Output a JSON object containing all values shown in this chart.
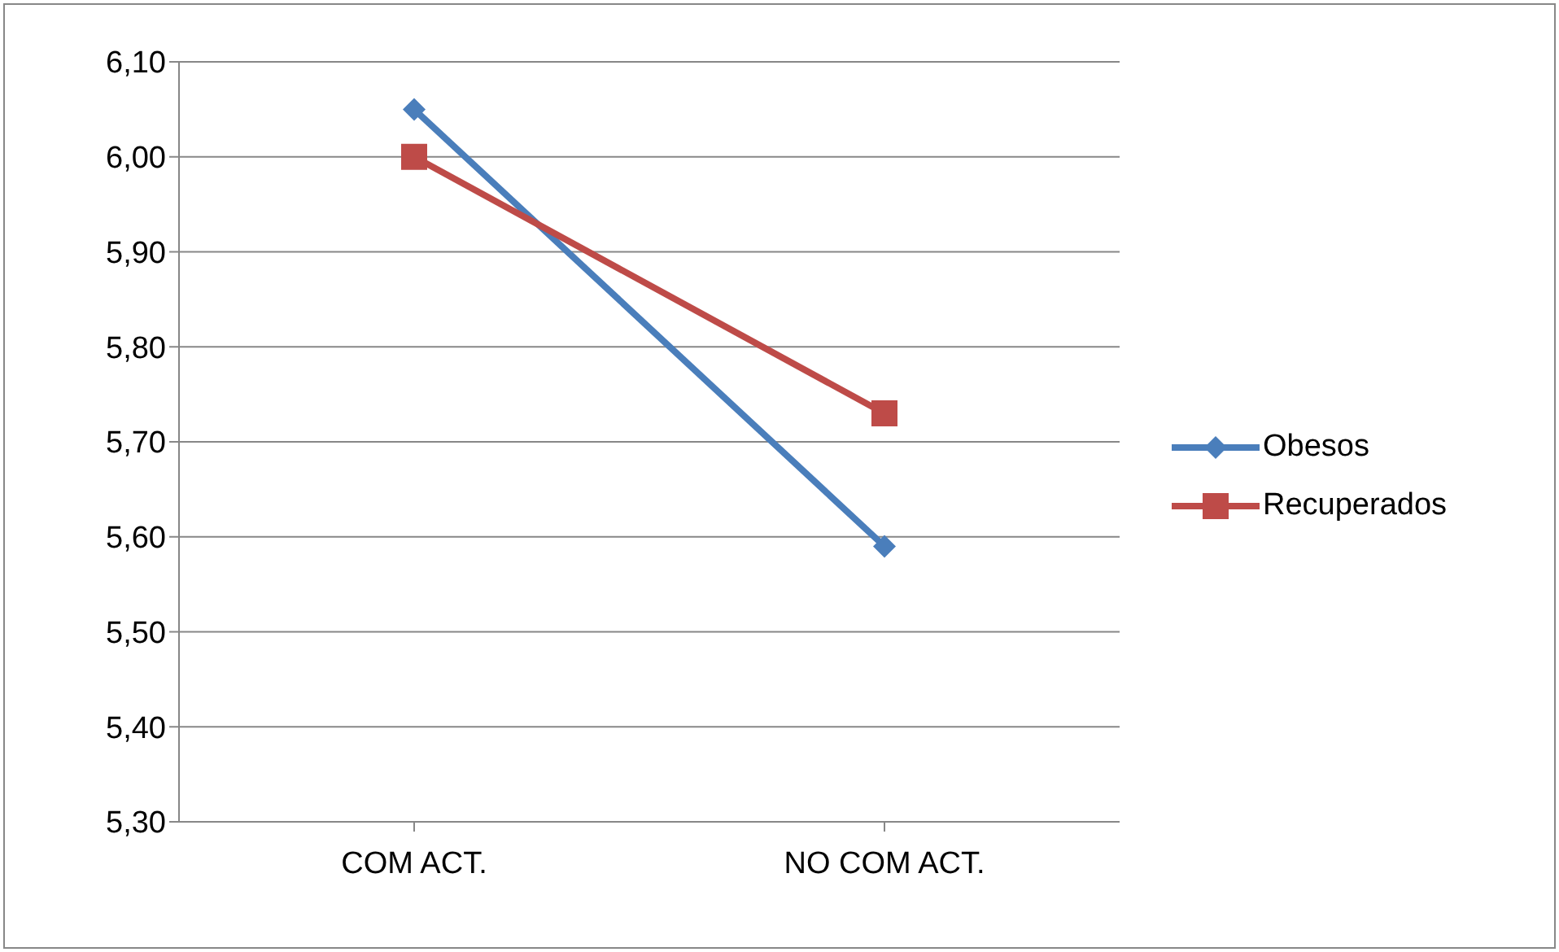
{
  "chart_data": {
    "type": "line",
    "categories": [
      "COM ACT.",
      "NO COM ACT."
    ],
    "series": [
      {
        "name": "Obesos",
        "color": "#4a7ebb",
        "values": [
          6.05,
          5.59
        ],
        "marker": "diamond"
      },
      {
        "name": "Recuperados",
        "color": "#be4b48",
        "values": [
          6.0,
          5.73
        ],
        "marker": "square"
      }
    ],
    "ylim": [
      5.3,
      6.1
    ],
    "yticks": [
      {
        "value": 5.3,
        "label": "5,30"
      },
      {
        "value": 5.4,
        "label": "5,40"
      },
      {
        "value": 5.5,
        "label": "5,50"
      },
      {
        "value": 5.6,
        "label": "5,60"
      },
      {
        "value": 5.7,
        "label": "5,70"
      },
      {
        "value": 5.8,
        "label": "5,80"
      },
      {
        "value": 5.9,
        "label": "5,90"
      },
      {
        "value": 6.0,
        "label": "6,00"
      },
      {
        "value": 6.1,
        "label": "6,10"
      }
    ],
    "grid": "y",
    "legend": "right"
  }
}
